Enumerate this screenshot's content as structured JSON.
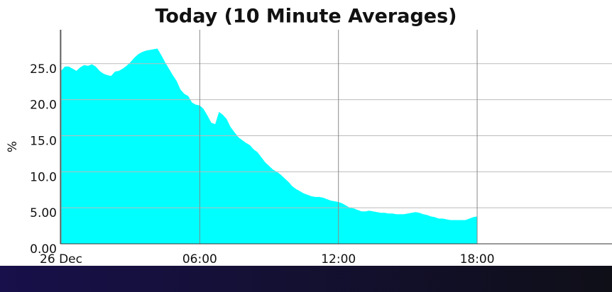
{
  "chart_data": {
    "type": "area",
    "title": "Today (10 Minute Averages)",
    "y_label": "%",
    "x": [
      "00:00",
      "00:10",
      "00:20",
      "00:30",
      "00:40",
      "00:50",
      "01:00",
      "01:10",
      "01:20",
      "01:30",
      "01:40",
      "01:50",
      "02:00",
      "02:10",
      "02:20",
      "02:30",
      "02:40",
      "02:50",
      "03:00",
      "03:10",
      "03:20",
      "03:30",
      "03:40",
      "03:50",
      "04:00",
      "04:10",
      "04:20",
      "04:30",
      "04:40",
      "04:50",
      "05:00",
      "05:10",
      "05:20",
      "05:30",
      "05:40",
      "05:50",
      "06:00",
      "06:10",
      "06:20",
      "06:30",
      "06:40",
      "06:50",
      "07:00",
      "07:10",
      "07:20",
      "07:30",
      "07:40",
      "07:50",
      "08:00",
      "08:10",
      "08:20",
      "08:30",
      "08:40",
      "08:50",
      "09:00",
      "09:10",
      "09:20",
      "09:30",
      "09:40",
      "09:50",
      "10:00",
      "10:10",
      "10:20",
      "10:30",
      "10:40",
      "10:50",
      "11:00",
      "11:10",
      "11:20",
      "11:30",
      "11:40",
      "11:50",
      "12:00",
      "12:10",
      "12:20",
      "12:30",
      "12:40",
      "12:50",
      "13:00",
      "13:10",
      "13:20",
      "13:30",
      "13:40",
      "13:50",
      "14:00",
      "14:10",
      "14:20",
      "14:30",
      "14:40",
      "14:50",
      "15:00",
      "15:10",
      "15:20",
      "15:30",
      "15:40",
      "15:50",
      "16:00",
      "16:10",
      "16:20",
      "16:30",
      "16:40",
      "16:50",
      "17:00",
      "17:10",
      "17:20",
      "17:30",
      "17:40",
      "17:50",
      "18:00"
    ],
    "values": [
      24.0,
      24.6,
      24.6,
      24.3,
      24.0,
      24.5,
      24.8,
      24.7,
      24.9,
      24.6,
      24.0,
      23.6,
      23.4,
      23.3,
      23.9,
      24.0,
      24.3,
      24.7,
      25.2,
      25.8,
      26.3,
      26.6,
      26.8,
      26.9,
      27.0,
      27.1,
      26.2,
      25.2,
      24.3,
      23.4,
      22.6,
      21.4,
      20.8,
      20.5,
      19.6,
      19.3,
      19.2,
      18.7,
      17.8,
      16.8,
      16.6,
      18.3,
      17.9,
      17.3,
      16.2,
      15.5,
      14.8,
      14.4,
      14.0,
      13.7,
      13.1,
      12.7,
      12.0,
      11.3,
      10.8,
      10.3,
      10.0,
      9.6,
      9.1,
      8.6,
      8.0,
      7.6,
      7.3,
      7.0,
      6.8,
      6.6,
      6.5,
      6.5,
      6.4,
      6.2,
      6.0,
      5.9,
      5.8,
      5.6,
      5.3,
      5.0,
      4.9,
      4.7,
      4.5,
      4.5,
      4.6,
      4.5,
      4.4,
      4.3,
      4.3,
      4.2,
      4.2,
      4.1,
      4.1,
      4.1,
      4.2,
      4.3,
      4.4,
      4.3,
      4.1,
      4.0,
      3.8,
      3.7,
      3.5,
      3.5,
      3.4,
      3.3,
      3.3,
      3.3,
      3.3,
      3.3,
      3.5,
      3.7,
      3.8
    ],
    "color": "#00ffff",
    "xlim": [
      "00:00",
      "23:50"
    ],
    "xticks": [
      {
        "value": "00:00",
        "label": "26 Dec"
      },
      "06:00",
      "12:00",
      "18:00"
    ],
    "ylim": [
      0,
      29.7
    ],
    "yticks": [
      {
        "value": 0,
        "label": "0.00"
      },
      {
        "value": 5,
        "label": "5.00"
      },
      {
        "value": 10,
        "label": "10.0"
      },
      {
        "value": 15,
        "label": "15.0"
      },
      {
        "value": 20,
        "label": "20.0"
      },
      {
        "value": 25,
        "label": "25.0"
      }
    ],
    "grid": true
  }
}
